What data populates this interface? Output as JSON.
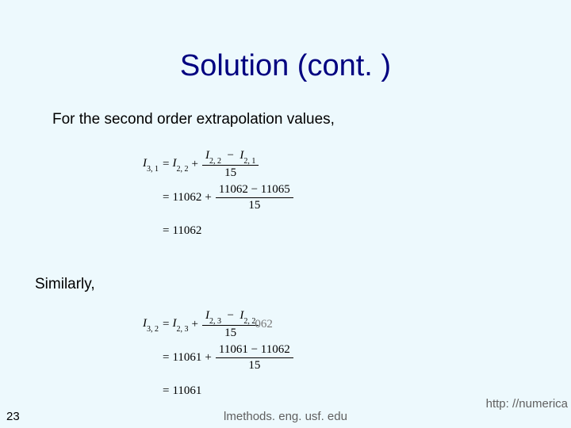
{
  "title": "Solution (cont. )",
  "text1": "For the second order extrapolation values,",
  "text2": "Similarly,",
  "slide_number": "23",
  "footer_center": "lmethods. eng. usf. edu",
  "footer_right": "http: //numerica",
  "eq1": {
    "lhs": "I",
    "lhs_sub": "3, 1",
    "rhs1": "I",
    "rhs1_sub": "2, 2",
    "frac_num_a": "I",
    "frac_num_a_sub": "2, 2",
    "frac_num_b": "I",
    "frac_num_b_sub": "2, 1",
    "frac_den": "15",
    "row2_base": "11062",
    "row2_num": "11062 − 11065",
    "row2_den": "15",
    "row3": "11062"
  },
  "eq2": {
    "lhs": "I",
    "lhs_sub": "3, 2",
    "rhs1": "I",
    "rhs1_sub": "2, 3",
    "frac_num_a": "I",
    "frac_num_a_sub": "2, 3",
    "frac_num_b": "I",
    "frac_num_b_sub": "2, 2",
    "frac_den": "15",
    "row2_base": "11061",
    "row2_num": "11061 − 11062",
    "row2_den": "15",
    "row3": "11061",
    "overlay": "062"
  },
  "style": {
    "background_color": "#edf9fd",
    "title_color": "#000080",
    "title_fontsize": 38,
    "body_fontsize": 19,
    "math_fontsize": 15,
    "footer_color": "#606060",
    "math_font": "Times New Roman"
  }
}
